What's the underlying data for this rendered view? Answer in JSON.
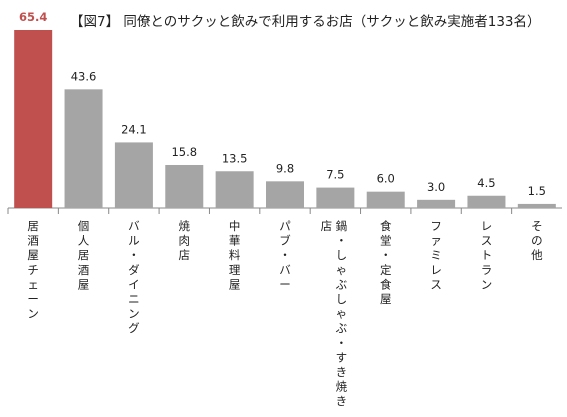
{
  "chart_data": {
    "type": "bar",
    "title": "【図7】 同僚とのサクッと飲みで利用するお店（サクッと飲み実施者133名）",
    "categories": [
      "居酒屋チェーン",
      "個人居酒屋",
      "バル・ダイニング",
      "焼肉店",
      "中華料理屋",
      "パブ・バー",
      "鍋・しゃぶしゃぶ・すき焼き店",
      "食堂・定食屋",
      "ファミレス",
      "レストラン",
      "その他"
    ],
    "values": [
      65.4,
      43.6,
      24.1,
      15.8,
      13.5,
      9.8,
      7.5,
      6.0,
      3.0,
      4.5,
      1.5
    ],
    "value_labels": [
      "65.4",
      "43.6",
      "24.1",
      "15.8",
      "13.5",
      "9.8",
      "7.5",
      "6.0",
      "3.0",
      "4.5",
      "1.5"
    ],
    "xlabel": "",
    "ylabel": "",
    "ylim": [
      0,
      65.4
    ],
    "grid": false,
    "highlight_index": 0,
    "colors": {
      "highlight": "#c0504d",
      "bar": "#a5a5a5",
      "highlight_label": "#c0504d",
      "label": "#222222",
      "axis": "#888888"
    }
  }
}
